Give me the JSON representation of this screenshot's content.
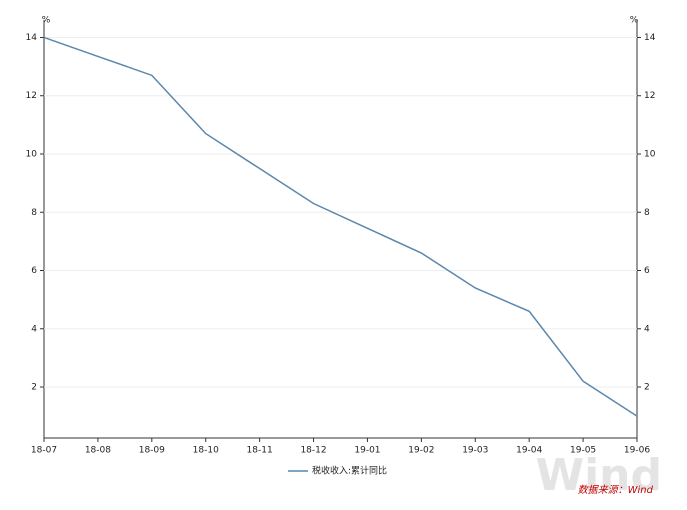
{
  "chart_data": {
    "type": "line",
    "y_unit": "%",
    "y2_unit": "%",
    "categories": [
      "18-07",
      "18-08",
      "18-09",
      "18-10",
      "18-11",
      "18-12",
      "19-01",
      "19-02",
      "19-03",
      "19-04",
      "19-05",
      "19-06"
    ],
    "series": [
      {
        "name": "税收收入:累计同比",
        "color": "#5b87ad",
        "values": [
          14.0,
          13.35,
          12.7,
          10.7,
          9.5,
          8.3,
          7.45,
          6.6,
          5.4,
          4.6,
          2.2,
          1.0
        ]
      }
    ],
    "ylim": [
      0.25,
      14.6
    ],
    "yticks": [
      2,
      4,
      6,
      8,
      10,
      12,
      14
    ],
    "y2lim": [
      0.25,
      14.6
    ],
    "y2ticks": [
      2,
      4,
      6,
      8,
      10,
      12,
      14
    ],
    "grid": true,
    "source": "数据来源：Wind",
    "watermark": "Wind"
  }
}
